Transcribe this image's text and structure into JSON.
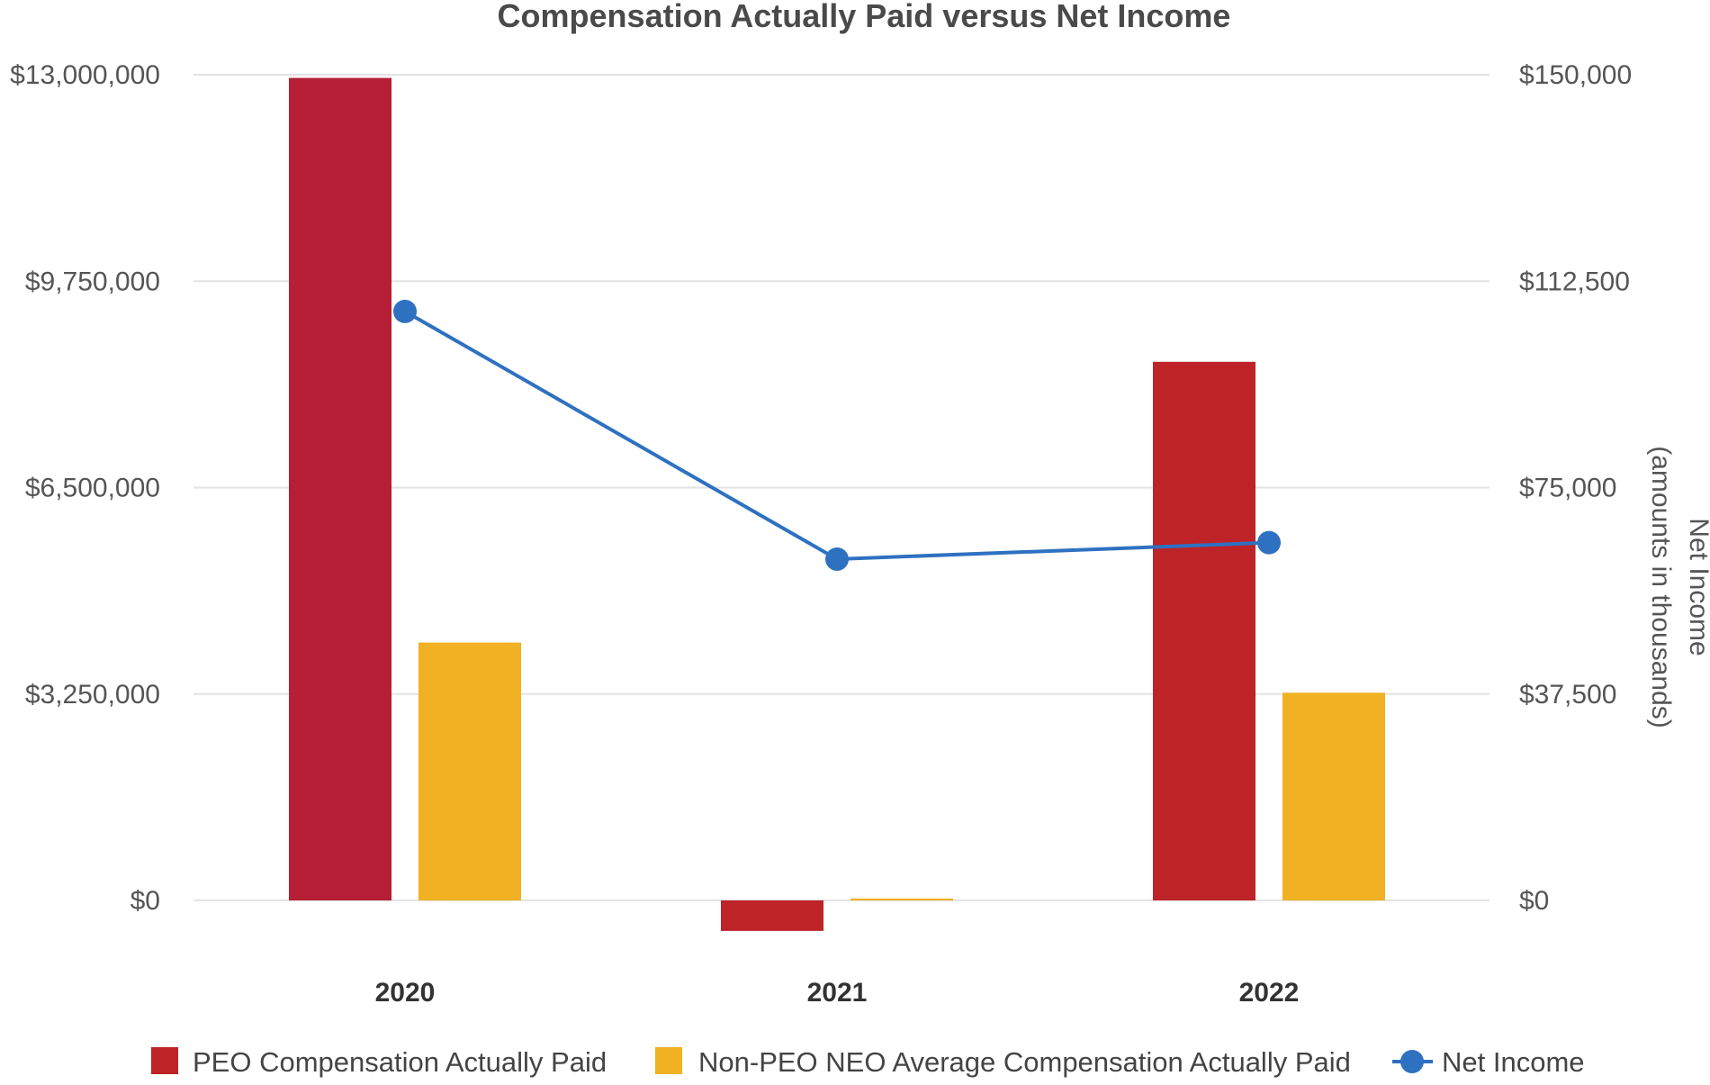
{
  "chart_data": {
    "type": "bar+line",
    "title": "Compensation Actually Paid versus Net Income",
    "categories": [
      "2020",
      "2021",
      "2022"
    ],
    "y_left": {
      "min": -800000,
      "max": 13000000,
      "ticks": [
        0,
        3250000,
        6500000,
        9750000,
        13000000
      ],
      "tick_labels": [
        "$0",
        "$3,250,000",
        "$6,500,000",
        "$9,750,000",
        "$13,000,000"
      ]
    },
    "y_right": {
      "min": -9230,
      "max": 150000,
      "ticks": [
        0,
        37500,
        75000,
        112500,
        150000
      ],
      "tick_labels": [
        "$0",
        "$37,500",
        "$75,000",
        "$112,500",
        "$150,000"
      ],
      "title_line1": "Net Income",
      "title_line2": "(amounts in thousands)"
    },
    "series": [
      {
        "name": "PEO Compensation Actually Paid",
        "type": "bar",
        "axis": "left",
        "colors": [
          "#b61f35",
          "#be2327",
          "#be2327"
        ],
        "values": [
          12950000,
          -480000,
          8480000
        ]
      },
      {
        "name": "Non-PEO NEO Average Compensation Actually Paid",
        "type": "bar",
        "axis": "left",
        "colors": [
          "#f0b122",
          "#f0b122",
          "#f0b122"
        ],
        "values": [
          4060000,
          30000,
          3270000
        ]
      },
      {
        "name": "Net Income",
        "type": "line",
        "axis": "right",
        "color": "#2e71c1",
        "values": [
          107000,
          62000,
          65000
        ]
      }
    ],
    "legend_position": "bottom",
    "legend": [
      {
        "label": "PEO Compensation Actually Paid",
        "swatch": "square",
        "color": "#be2327"
      },
      {
        "label": "Non-PEO NEO Average Compensation Actually Paid",
        "swatch": "square",
        "color": "#f0b122"
      },
      {
        "label": "Net Income",
        "swatch": "line-marker",
        "color": "#2e71c1"
      }
    ]
  }
}
